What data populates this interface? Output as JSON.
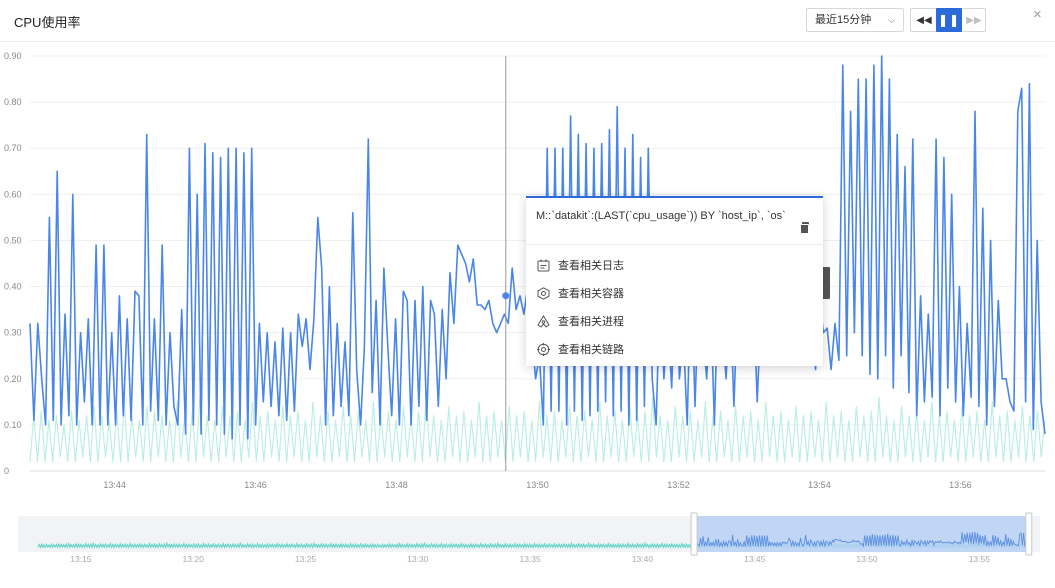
{
  "header": {
    "title": "CPU使用率",
    "time_range": "最近15分钟",
    "close": "×"
  },
  "colors": {
    "primary": "#4a86e8",
    "secondary": "#b8eee3",
    "brush_selection": "#b9d0f4",
    "accent": "#2b6ad9"
  },
  "context_menu": {
    "title": "M::`datakit`:(LAST(`cpu_usage`)) BY `host_ip`, `os`",
    "items": [
      {
        "label": "查看相关日志",
        "icon": "log-icon"
      },
      {
        "label": "查看相关容器",
        "icon": "container-icon"
      },
      {
        "label": "查看相关进程",
        "icon": "process-icon"
      },
      {
        "label": "查看相关链路",
        "icon": "trace-icon"
      }
    ]
  },
  "chart_data": {
    "type": "line",
    "xlabel": "",
    "ylabel": "",
    "ylim": [
      0,
      0.9
    ],
    "grid": true,
    "yticks": [
      "0",
      "0.10",
      "0.20",
      "0.30",
      "0.40",
      "0.50",
      "0.60",
      "0.70",
      "0.80",
      "0.90"
    ],
    "xticks": [
      "13:44",
      "13:46",
      "13:48",
      "13:50",
      "13:52",
      "13:54",
      "13:56"
    ],
    "xtick_minutes": [
      44,
      46,
      48,
      50,
      52,
      54,
      56
    ],
    "x_start_minute": 42.8,
    "x_end_minute": 57.2,
    "hover_minute": 49.55,
    "series": [
      {
        "values": [
          0.32,
          0.11,
          0.32,
          0.2,
          0.1,
          0.55,
          0.11,
          0.65,
          0.1,
          0.34,
          0.12,
          0.6,
          0.1,
          0.3,
          0.15,
          0.33,
          0.1,
          0.49,
          0.1,
          0.49,
          0.1,
          0.3,
          0.1,
          0.38,
          0.12,
          0.33,
          0.11,
          0.39,
          0.38,
          0.1,
          0.73,
          0.13,
          0.33,
          0.11,
          0.49,
          0.1,
          0.3,
          0.14,
          0.1,
          0.35,
          0.08,
          0.7,
          0.1,
          0.6,
          0.08,
          0.71,
          0.11,
          0.69,
          0.1,
          0.68,
          0.08,
          0.7,
          0.07,
          0.7,
          0.1,
          0.69,
          0.07,
          0.7,
          0.1,
          0.32,
          0.15,
          0.3,
          0.14,
          0.28,
          0.12,
          0.31,
          0.11,
          0.3,
          0.13,
          0.34,
          0.27,
          0.33,
          0.22,
          0.33,
          0.55,
          0.44,
          0.1,
          0.4,
          0.12,
          0.32,
          0.14,
          0.28,
          0.12,
          0.56,
          0.22,
          0.1,
          0.27,
          0.72,
          0.17,
          0.37,
          0.1,
          0.44,
          0.27,
          0.12,
          0.33,
          0.1,
          0.39,
          0.37,
          0.1,
          0.37,
          0.14,
          0.4,
          0.11,
          0.37,
          0.34,
          0.14,
          0.35,
          0.2,
          0.43,
          0.32,
          0.49,
          0.47,
          0.45,
          0.41,
          0.46,
          0.36,
          0.36,
          0.35,
          0.37,
          0.32,
          0.3,
          0.32,
          0.34,
          0.32,
          0.44,
          0.35,
          0.38,
          0.34,
          0.4,
          0.3,
          0.2,
          0.25,
          0.1,
          0.7,
          0.13,
          0.7,
          0.13,
          0.7,
          0.1,
          0.77,
          0.13,
          0.73,
          0.11,
          0.71,
          0.12,
          0.7,
          0.13,
          0.71,
          0.15,
          0.74,
          0.12,
          0.79,
          0.13,
          0.7,
          0.1,
          0.73,
          0.11,
          0.68,
          0.14,
          0.7,
          0.2,
          0.1,
          0.4,
          0.2,
          0.33,
          0.18,
          0.45,
          0.2,
          0.3,
          0.1,
          0.45,
          0.14,
          0.4,
          0.3,
          0.2,
          0.38,
          0.1,
          0.42,
          0.32,
          0.2,
          0.4,
          0.14,
          0.38,
          0.23,
          0.41,
          0.32,
          0.4,
          0.15,
          0.35,
          0.3,
          0.36,
          0.29,
          0.4,
          0.3,
          0.28,
          0.32,
          0.3,
          0.28,
          0.33,
          0.32,
          0.25,
          0.3,
          0.22,
          0.38,
          0.3,
          0.31,
          0.22,
          0.32,
          0.24,
          0.88,
          0.25,
          0.78,
          0.3,
          0.85,
          0.25,
          0.85,
          0.21,
          0.88,
          0.2,
          0.9,
          0.25,
          0.85,
          0.18,
          0.73,
          0.25,
          0.66,
          0.17,
          0.72,
          0.12,
          0.38,
          0.15,
          0.34,
          0.16,
          0.72,
          0.12,
          0.68,
          0.18,
          0.6,
          0.15,
          0.4,
          0.12,
          0.32,
          0.16,
          0.78,
          0.14,
          0.57,
          0.1,
          0.5,
          0.14,
          0.37,
          0.2,
          0.2,
          0.15,
          0.13,
          0.78,
          0.83,
          0.15,
          0.84,
          0.09,
          0.5,
          0.15,
          0.08
        ]
      },
      {
        "values": [
          0.02,
          0.12,
          0.02,
          0.13,
          0.02,
          0.11,
          0.02,
          0.12,
          0.03,
          0.1,
          0.02,
          0.13,
          0.02,
          0.11,
          0.03,
          0.12,
          0.02,
          0.14,
          0.02,
          0.12,
          0.03,
          0.11,
          0.02,
          0.13,
          0.02,
          0.15,
          0.02,
          0.12,
          0.03,
          0.11,
          0.02,
          0.14,
          0.02,
          0.13,
          0.03,
          0.12,
          0.02,
          0.11,
          0.02,
          0.15,
          0.03,
          0.12,
          0.02,
          0.13,
          0.02,
          0.16,
          0.03,
          0.12,
          0.02,
          0.11,
          0.02,
          0.14,
          0.03,
          0.12,
          0.02,
          0.13,
          0.02,
          0.11,
          0.03,
          0.15,
          0.02,
          0.12,
          0.02,
          0.13,
          0.03,
          0.11,
          0.02,
          0.14,
          0.02,
          0.12,
          0.03,
          0.13,
          0.02,
          0.11,
          0.02,
          0.15,
          0.03,
          0.12,
          0.02,
          0.13,
          0.02,
          0.11,
          0.03,
          0.14,
          0.02,
          0.12,
          0.02,
          0.13,
          0.03,
          0.11,
          0.02,
          0.15,
          0.02,
          0.12,
          0.03,
          0.13,
          0.02,
          0.11,
          0.02,
          0.14,
          0.03,
          0.12,
          0.02,
          0.13,
          0.02,
          0.16,
          0.03,
          0.12,
          0.02,
          0.11,
          0.02,
          0.14,
          0.03,
          0.12,
          0.02,
          0.13,
          0.02,
          0.11,
          0.03,
          0.15,
          0.02,
          0.12,
          0.02,
          0.13,
          0.03,
          0.11,
          0.02,
          0.14,
          0.02,
          0.12,
          0.03,
          0.13,
          0.02,
          0.11,
          0.02,
          0.15,
          0.03,
          0.12,
          0.02,
          0.13,
          0.02,
          0.11,
          0.03,
          0.14,
          0.02,
          0.12,
          0.02,
          0.13,
          0.03,
          0.11,
          0.02,
          0.15,
          0.02,
          0.12,
          0.03,
          0.13,
          0.02,
          0.11,
          0.02,
          0.14,
          0.03,
          0.12,
          0.02,
          0.13,
          0.02,
          0.16,
          0.03,
          0.12,
          0.02,
          0.11,
          0.02,
          0.14,
          0.03,
          0.12,
          0.02,
          0.13,
          0.02,
          0.11,
          0.03,
          0.15,
          0.02,
          0.12,
          0.02,
          0.13,
          0.03,
          0.11,
          0.02,
          0.14,
          0.02,
          0.12,
          0.03,
          0.13,
          0.02,
          0.11,
          0.02,
          0.15,
          0.03,
          0.12,
          0.02,
          0.13,
          0.02,
          0.11,
          0.03,
          0.14,
          0.02,
          0.12,
          0.02,
          0.13,
          0.03,
          0.11,
          0.02,
          0.15,
          0.02,
          0.12,
          0.03,
          0.13,
          0.02,
          0.11,
          0.02,
          0.14,
          0.03,
          0.12,
          0.02,
          0.13,
          0.02,
          0.16,
          0.03,
          0.12,
          0.02,
          0.11,
          0.02,
          0.14,
          0.03,
          0.12,
          0.02,
          0.13,
          0.02,
          0.11,
          0.03,
          0.15,
          0.02,
          0.12,
          0.02,
          0.13,
          0.03,
          0.11,
          0.02,
          0.14,
          0.02,
          0.12,
          0.03,
          0.13,
          0.02,
          0.11,
          0.02,
          0.15,
          0.03,
          0.12,
          0.02,
          0.13,
          0.02,
          0.11,
          0.03,
          0.14,
          0.02,
          0.12,
          0.02,
          0.13,
          0.03,
          0.11
        ]
      }
    ],
    "brush": {
      "xticks": [
        "13:15",
        "13:20",
        "13:25",
        "13:30",
        "13:35",
        "13:40",
        "13:45",
        "13:50",
        "13:55"
      ],
      "xtick_minutes": [
        15,
        20,
        25,
        30,
        35,
        40,
        45,
        50,
        55
      ],
      "x_start_minute": 12.2,
      "x_end_minute": 57.7,
      "selection_minutes": [
        42.3,
        57.2
      ]
    }
  }
}
